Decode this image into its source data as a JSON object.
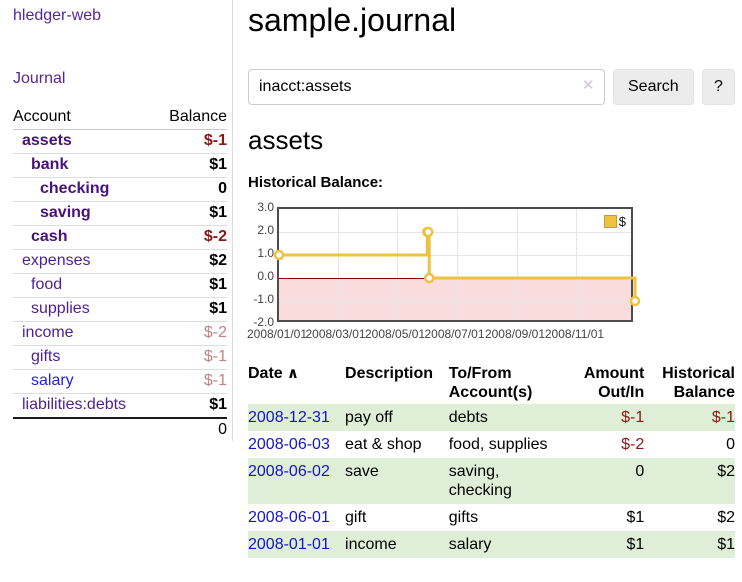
{
  "app": {
    "brand": "hledger-web"
  },
  "sidebar": {
    "journal_link": "Journal",
    "accounts": {
      "headers": {
        "account": "Account",
        "balance": "Balance"
      },
      "rows": [
        {
          "name": "assets",
          "depth": 1,
          "bold": true,
          "balance": "$-1",
          "neg": true,
          "muted": false,
          "blue": false,
          "last": false
        },
        {
          "name": "bank",
          "depth": 2,
          "bold": true,
          "balance": "$1",
          "neg": false,
          "muted": false,
          "blue": false,
          "last": false
        },
        {
          "name": "checking",
          "depth": 3,
          "bold": true,
          "balance": "0",
          "neg": false,
          "muted": false,
          "blue": false,
          "last": false
        },
        {
          "name": "saving",
          "depth": 3,
          "bold": true,
          "balance": "$1",
          "neg": false,
          "muted": false,
          "blue": false,
          "last": false
        },
        {
          "name": "cash",
          "depth": 2,
          "bold": true,
          "balance": "$-2",
          "neg": true,
          "muted": false,
          "blue": false,
          "last": false
        },
        {
          "name": "expenses",
          "depth": 1,
          "bold": false,
          "balance": "$2",
          "neg": false,
          "muted": false,
          "blue": false,
          "last": false
        },
        {
          "name": "food",
          "depth": 2,
          "bold": false,
          "balance": "$1",
          "neg": false,
          "muted": false,
          "blue": false,
          "last": false
        },
        {
          "name": "supplies",
          "depth": 2,
          "bold": false,
          "balance": "$1",
          "neg": false,
          "muted": false,
          "blue": false,
          "last": false
        },
        {
          "name": "income",
          "depth": 1,
          "bold": false,
          "balance": "$-2",
          "neg": true,
          "muted": true,
          "blue": false,
          "last": false
        },
        {
          "name": "gifts",
          "depth": 2,
          "bold": false,
          "balance": "$-1",
          "neg": true,
          "muted": true,
          "blue": false,
          "last": false
        },
        {
          "name": "salary",
          "depth": 2,
          "bold": false,
          "balance": "$-1",
          "neg": true,
          "muted": true,
          "blue": true,
          "last": false
        },
        {
          "name": "liabilities:debts",
          "depth": 1,
          "bold": false,
          "balance": "$1",
          "neg": false,
          "muted": false,
          "blue": false,
          "last": true
        }
      ],
      "total": "0"
    }
  },
  "header": {
    "title": "sample.journal"
  },
  "search": {
    "value": "inacct:assets",
    "clear_icon": "✕",
    "button_label": "Search",
    "help_label": "?"
  },
  "account_page": {
    "heading": "assets",
    "chart_title": "Historical Balance:"
  },
  "chart_data": {
    "type": "line",
    "step": true,
    "title": "Historical Balance:",
    "x_start": "2008-01-01",
    "x_end": "2008-12-31",
    "ylim": [
      -2,
      3
    ],
    "y_ticks": [
      "3.0",
      "2.0",
      "1.0",
      "0.0",
      "-1.0",
      "-2.0"
    ],
    "x_ticks": [
      "2008/01/01",
      "2008/03/01",
      "2008/05/01",
      "2008/07/01",
      "2008/09/01",
      "2008/11/01"
    ],
    "series": [
      {
        "name": "$",
        "color": "#EDC240",
        "points": [
          [
            "2008-01-01",
            1
          ],
          [
            "2008-06-01",
            2
          ],
          [
            "2008-06-02",
            2
          ],
          [
            "2008-06-03",
            0
          ],
          [
            "2008-12-31",
            -1
          ]
        ]
      }
    ],
    "legend": {
      "label": "$",
      "position": "top-right"
    },
    "grid": true,
    "zero_line_color": "#800000",
    "negative_region_color": "#f9dcdc"
  },
  "register": {
    "headers": [
      {
        "label": "Date",
        "sort": "asc",
        "align": "left"
      },
      {
        "label": "Description",
        "sort": "",
        "align": "left"
      },
      {
        "label": "To/From\nAccount(s)",
        "sort": "",
        "align": "left"
      },
      {
        "label": "Amount\nOut/In",
        "sort": "",
        "align": "right"
      },
      {
        "label": "Historical\nBalance",
        "sort": "",
        "align": "right"
      }
    ],
    "sort_icon": "∧",
    "rows": [
      {
        "date": "2008-12-31",
        "description": "pay off",
        "accounts": "debts",
        "amount": "$-1",
        "amount_neg": true,
        "balance": "$-1",
        "balance_neg": true,
        "stripe": true
      },
      {
        "date": "2008-06-03",
        "description": "eat & shop",
        "accounts": "food, supplies",
        "amount": "$-2",
        "amount_neg": true,
        "balance": "0",
        "balance_neg": false,
        "stripe": false
      },
      {
        "date": "2008-06-02",
        "description": "save",
        "accounts": "saving,\nchecking",
        "amount": "0",
        "amount_neg": false,
        "balance": "$2",
        "balance_neg": false,
        "stripe": true
      },
      {
        "date": "2008-06-01",
        "description": "gift",
        "accounts": "gifts",
        "amount": "$1",
        "amount_neg": false,
        "balance": "$2",
        "balance_neg": false,
        "stripe": false
      },
      {
        "date": "2008-01-01",
        "description": "income",
        "accounts": "salary",
        "amount": "$1",
        "amount_neg": false,
        "balance": "$1",
        "balance_neg": false,
        "stripe": true
      }
    ]
  },
  "colors": {
    "accent_purple": "#55279b",
    "link_blue": "#1414cc",
    "negative_red": "#8b1717",
    "negative_muted": "#c58282",
    "stripe_green": "#dfeed6",
    "series_gold": "#EDC240"
  }
}
